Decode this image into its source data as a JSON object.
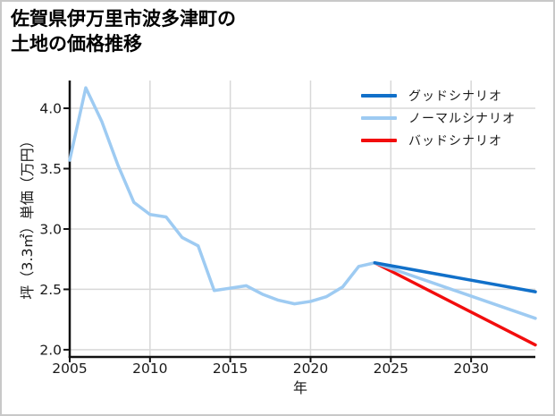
{
  "title": {
    "line1": "佐賀県伊万里市波多津町の",
    "line2": "土地の価格推移"
  },
  "legend": {
    "items": [
      {
        "id": "good",
        "label": "グッドシナリオ",
        "color": "#1170c9"
      },
      {
        "id": "normal",
        "label": "ノーマルシナリオ",
        "color": "#9ecbf2"
      },
      {
        "id": "bad",
        "label": "バッドシナリオ",
        "color": "#f20d0d"
      }
    ]
  },
  "colors": {
    "grid": "#d8d8d8",
    "axis": "#111111",
    "text": "#1a1a1a",
    "background": "#ffffff",
    "border": "#c8c8c8",
    "history": "#9ecbf2"
  },
  "chart_data": {
    "type": "line",
    "title": "佐賀県伊万里市波多津町の土地の価格推移",
    "xlabel": "年",
    "ylabel": "坪（3.3㎡）単価（万円）",
    "xlim": [
      2005,
      2034
    ],
    "ylim": [
      1.94,
      4.23
    ],
    "xticks": [
      2005,
      2010,
      2015,
      2020,
      2025,
      2030
    ],
    "yticks": [
      2.0,
      2.5,
      3.0,
      3.5,
      4.0
    ],
    "grid": true,
    "legend_position": "top-right",
    "series": [
      {
        "id": "history",
        "color": "#9ecbf2",
        "x": [
          2005,
          2006,
          2007,
          2008,
          2009,
          2010,
          2011,
          2012,
          2013,
          2014,
          2015,
          2016,
          2017,
          2018,
          2019,
          2020,
          2021,
          2022,
          2023,
          2024
        ],
        "values": [
          3.57,
          4.17,
          3.89,
          3.53,
          3.22,
          3.12,
          3.1,
          2.93,
          2.86,
          2.49,
          2.51,
          2.53,
          2.46,
          2.41,
          2.38,
          2.4,
          2.44,
          2.52,
          2.69,
          2.72
        ]
      },
      {
        "id": "good",
        "name": "グッドシナリオ",
        "color": "#1170c9",
        "x": [
          2024,
          2034
        ],
        "values": [
          2.72,
          2.48
        ]
      },
      {
        "id": "normal",
        "name": "ノーマルシナリオ",
        "color": "#9ecbf2",
        "x": [
          2024,
          2034
        ],
        "values": [
          2.72,
          2.26
        ]
      },
      {
        "id": "bad",
        "name": "バッドシナリオ",
        "color": "#f20d0d",
        "x": [
          2024,
          2034
        ],
        "values": [
          2.72,
          2.04
        ]
      }
    ]
  }
}
